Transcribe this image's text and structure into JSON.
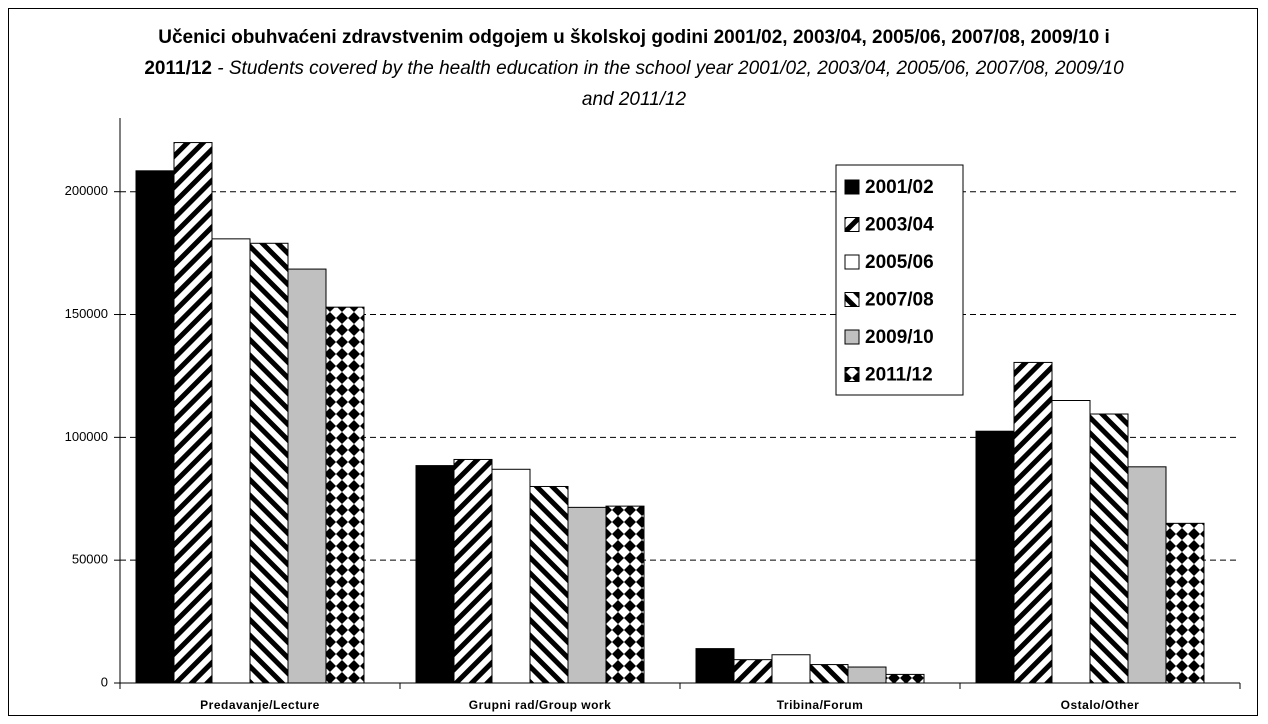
{
  "chart_data": {
    "type": "bar",
    "title": "Učenici obuhvaćeni zdravstvenim odgojem u školskoj godini 2001/02, 2003/04, 2005/06, 2007/08, 2009/10 i 2011/12",
    "subtitle": "- Students covered by the health education in the school year 2001/02, 2003/04, 2005/06, 2007/08, 2009/10 and 2011/12",
    "categories": [
      "Predavanje/Lecture",
      "Grupni rad/Group work",
      "Tribina/Forum",
      "Ostalo/Other"
    ],
    "series": [
      {
        "name": "2001/02",
        "color": "#000000",
        "pattern": "solid",
        "values": [
          208500,
          88500,
          14000,
          102500
        ]
      },
      {
        "name": "2003/04",
        "color": "#000000",
        "pattern": "diag-up",
        "values": [
          220000,
          91000,
          9500,
          130500
        ]
      },
      {
        "name": "2005/06",
        "color": "#ffffff",
        "pattern": "solid",
        "values": [
          180800,
          87000,
          11500,
          115000
        ]
      },
      {
        "name": "2007/08",
        "color": "#000000",
        "pattern": "diag-down",
        "values": [
          179000,
          80000,
          7500,
          109500
        ]
      },
      {
        "name": "2009/10",
        "color": "#c0c0c0",
        "pattern": "solid",
        "values": [
          168500,
          71500,
          6500,
          88000
        ]
      },
      {
        "name": "2011/12",
        "color": "#000000",
        "pattern": "diamond",
        "values": [
          153000,
          72000,
          3500,
          65000
        ]
      }
    ],
    "ylim": [
      0,
      230000
    ],
    "yticks": [
      0,
      50000,
      100000,
      150000,
      200000
    ],
    "grid": true,
    "legend": "upper-right"
  }
}
